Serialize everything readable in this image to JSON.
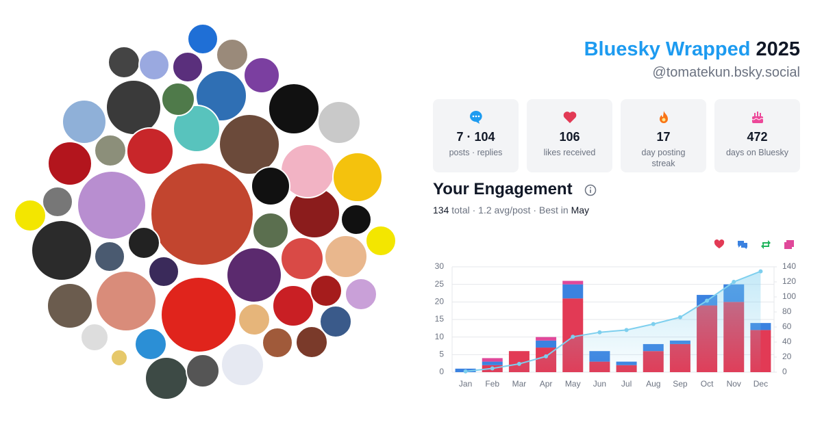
{
  "header": {
    "title": "Bluesky Wrapped",
    "year": "2025",
    "handle": "@tomatekun.bsky.social"
  },
  "stats": [
    {
      "value": "7 · 104",
      "label": "posts · replies"
    },
    {
      "value": "106",
      "label": "likes received"
    },
    {
      "value": "17",
      "label": "day posting streak"
    },
    {
      "value": "472",
      "label": "days on Bluesky"
    }
  ],
  "engagement": {
    "title": "Your Engagement",
    "total": "134",
    "summary": " total · 1.2 avg/post · Best in ",
    "best": "May"
  },
  "chart_data": {
    "type": "bar",
    "stacked": true,
    "grid": true,
    "categories": [
      "Jan",
      "Feb",
      "Mar",
      "Apr",
      "May",
      "Jun",
      "Jul",
      "Aug",
      "Sep",
      "Oct",
      "Nov",
      "Dec"
    ],
    "series": [
      {
        "color": "#e23a55",
        "values": [
          0,
          2,
          6,
          7,
          21,
          3,
          2,
          6,
          8,
          19,
          20,
          12
        ]
      },
      {
        "color": "#3b82e0",
        "values": [
          1,
          1,
          0,
          2,
          4,
          3,
          1,
          2,
          1,
          3,
          5,
          2
        ]
      },
      {
        "color": "#22b55e",
        "values": [
          0,
          0,
          0,
          0,
          0,
          0,
          0,
          0,
          0,
          0,
          0,
          0
        ]
      },
      {
        "color": "#e0489a",
        "values": [
          0,
          1,
          0,
          1,
          1,
          0,
          0,
          0,
          0,
          0,
          0,
          0
        ]
      },
      {
        "type": "line",
        "axis": "y2",
        "color": "#7dcfee",
        "values": [
          1,
          5,
          11,
          21,
          47,
          53,
          56,
          64,
          73,
          95,
          120,
          134
        ]
      }
    ],
    "ylim": [
      0,
      30
    ],
    "yticks": [
      0,
      5,
      10,
      15,
      20,
      25,
      30
    ],
    "y2lim": [
      0,
      140
    ],
    "y2ticks": [
      0,
      20,
      40,
      60,
      80,
      100,
      120,
      140
    ]
  }
}
